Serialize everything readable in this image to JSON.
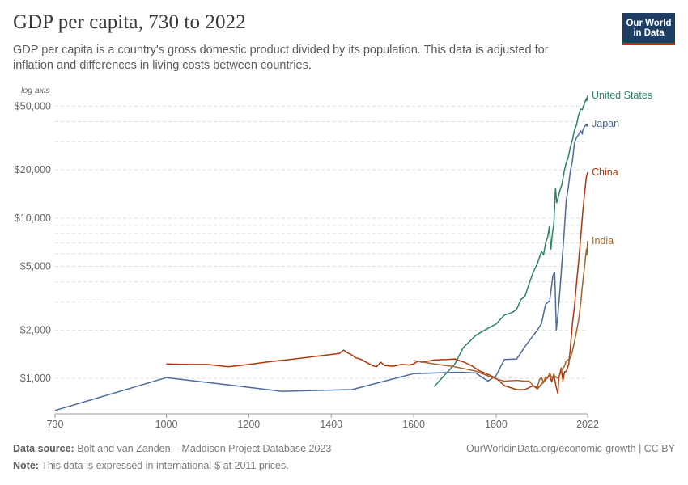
{
  "header": {
    "title": "GDP per capita, 730 to 2022",
    "subtitle": "GDP per capita is a country's gross domestic product divided by its population. This data is adjusted for inflation and differences in living costs between countries."
  },
  "logo": {
    "line1": "Our World",
    "line2": "in Data"
  },
  "footer": {
    "source_label": "Data source:",
    "source_text": "Bolt and van Zanden – Maddison Project Database 2023",
    "note_label": "Note:",
    "note_text": "This data is expressed in international-$ at 2011 prices.",
    "url": "OurWorldinData.org/economic-growth | CC BY"
  },
  "chart_data": {
    "type": "line",
    "axis_note": "log axis",
    "yscale": "log",
    "ylim": [
      600,
      57000
    ],
    "xlim": [
      730,
      2022
    ],
    "x_ticks": [
      730,
      1000,
      1200,
      1400,
      1600,
      1800,
      2022
    ],
    "y_ticks": [
      {
        "value": 1000,
        "label": "$1,000"
      },
      {
        "value": 2000,
        "label": "$2,000"
      },
      {
        "value": 5000,
        "label": "$5,000"
      },
      {
        "value": 10000,
        "label": "$10,000"
      },
      {
        "value": 20000,
        "label": "$20,000"
      },
      {
        "value": 50000,
        "label": "$50,000"
      }
    ],
    "y_gridlines": [
      1000,
      2000,
      3000,
      4000,
      5000,
      6000,
      7000,
      8000,
      9000,
      10000,
      20000,
      30000,
      40000,
      50000
    ],
    "grid": true,
    "legend": "inline-right",
    "series": [
      {
        "name": "United States",
        "color": "#2c8465",
        "points": [
          [
            1650,
            890
          ],
          [
            1700,
            1230
          ],
          [
            1720,
            1550
          ],
          [
            1750,
            1850
          ],
          [
            1780,
            2050
          ],
          [
            1800,
            2180
          ],
          [
            1820,
            2480
          ],
          [
            1840,
            2580
          ],
          [
            1850,
            2700
          ],
          [
            1860,
            3100
          ],
          [
            1870,
            3250
          ],
          [
            1880,
            3900
          ],
          [
            1890,
            4600
          ],
          [
            1900,
            5200
          ],
          [
            1910,
            6200
          ],
          [
            1915,
            5900
          ],
          [
            1920,
            7000
          ],
          [
            1925,
            7600
          ],
          [
            1929,
            8800
          ],
          [
            1933,
            6400
          ],
          [
            1937,
            8200
          ],
          [
            1940,
            9200
          ],
          [
            1944,
            15400
          ],
          [
            1947,
            12500
          ],
          [
            1950,
            13200
          ],
          [
            1955,
            15000
          ],
          [
            1960,
            16300
          ],
          [
            1965,
            19600
          ],
          [
            1970,
            22100
          ],
          [
            1975,
            24000
          ],
          [
            1980,
            27700
          ],
          [
            1985,
            30800
          ],
          [
            1990,
            35400
          ],
          [
            1995,
            38000
          ],
          [
            2000,
            44000
          ],
          [
            2005,
            48000
          ],
          [
            2009,
            47500
          ],
          [
            2010,
            48400
          ],
          [
            2015,
            52500
          ],
          [
            2019,
            56000
          ],
          [
            2020,
            54000
          ],
          [
            2022,
            58500
          ]
        ]
      },
      {
        "name": "Japan",
        "color": "#4c6a9c",
        "points": [
          [
            730,
            630
          ],
          [
            1000,
            1010
          ],
          [
            1150,
            910
          ],
          [
            1280,
            830
          ],
          [
            1450,
            850
          ],
          [
            1600,
            1070
          ],
          [
            1700,
            1090
          ],
          [
            1720,
            1090
          ],
          [
            1750,
            1080
          ],
          [
            1780,
            960
          ],
          [
            1800,
            1040
          ],
          [
            1820,
            1310
          ],
          [
            1850,
            1320
          ],
          [
            1870,
            1580
          ],
          [
            1890,
            1850
          ],
          [
            1900,
            2000
          ],
          [
            1910,
            2200
          ],
          [
            1920,
            2900
          ],
          [
            1930,
            3050
          ],
          [
            1938,
            4400
          ],
          [
            1942,
            4600
          ],
          [
            1945,
            2500
          ],
          [
            1946,
            2000
          ],
          [
            1950,
            2500
          ],
          [
            1955,
            3600
          ],
          [
            1960,
            5400
          ],
          [
            1965,
            8100
          ],
          [
            1970,
            12800
          ],
          [
            1975,
            15500
          ],
          [
            1980,
            19600
          ],
          [
            1985,
            22700
          ],
          [
            1990,
            29300
          ],
          [
            1995,
            31800
          ],
          [
            2000,
            33100
          ],
          [
            2005,
            35100
          ],
          [
            2009,
            33500
          ],
          [
            2010,
            35200
          ],
          [
            2015,
            37400
          ],
          [
            2019,
            38600
          ],
          [
            2020,
            37500
          ],
          [
            2022,
            38800
          ]
        ]
      },
      {
        "name": "China",
        "color": "#b13507",
        "points": [
          [
            1000,
            1230
          ],
          [
            1050,
            1220
          ],
          [
            1100,
            1220
          ],
          [
            1150,
            1180
          ],
          [
            1200,
            1220
          ],
          [
            1250,
            1270
          ],
          [
            1300,
            1310
          ],
          [
            1350,
            1360
          ],
          [
            1400,
            1410
          ],
          [
            1420,
            1430
          ],
          [
            1430,
            1500
          ],
          [
            1440,
            1440
          ],
          [
            1450,
            1400
          ],
          [
            1460,
            1340
          ],
          [
            1470,
            1320
          ],
          [
            1480,
            1280
          ],
          [
            1500,
            1200
          ],
          [
            1510,
            1180
          ],
          [
            1520,
            1260
          ],
          [
            1530,
            1200
          ],
          [
            1550,
            1190
          ],
          [
            1570,
            1220
          ],
          [
            1590,
            1210
          ],
          [
            1600,
            1230
          ],
          [
            1610,
            1280
          ],
          [
            1620,
            1260
          ],
          [
            1650,
            1300
          ],
          [
            1680,
            1310
          ],
          [
            1700,
            1320
          ],
          [
            1710,
            1290
          ],
          [
            1720,
            1270
          ],
          [
            1740,
            1200
          ],
          [
            1760,
            1110
          ],
          [
            1780,
            1060
          ],
          [
            1800,
            1000
          ],
          [
            1820,
            900
          ],
          [
            1850,
            850
          ],
          [
            1870,
            850
          ],
          [
            1890,
            900
          ],
          [
            1900,
            860
          ],
          [
            1910,
            920
          ],
          [
            1920,
            980
          ],
          [
            1929,
            1050
          ],
          [
            1935,
            950
          ],
          [
            1940,
            1060
          ],
          [
            1945,
            900
          ],
          [
            1950,
            800
          ],
          [
            1952,
            1000
          ],
          [
            1958,
            1160
          ],
          [
            1962,
            960
          ],
          [
            1966,
            1100
          ],
          [
            1970,
            1100
          ],
          [
            1976,
            1220
          ],
          [
            1980,
            1530
          ],
          [
            1985,
            2200
          ],
          [
            1990,
            2800
          ],
          [
            1995,
            3900
          ],
          [
            2000,
            5300
          ],
          [
            2005,
            7400
          ],
          [
            2010,
            10800
          ],
          [
            2015,
            14600
          ],
          [
            2019,
            18200
          ],
          [
            2022,
            19300
          ]
        ]
      },
      {
        "name": "India",
        "color": "#a2652c",
        "points": [
          [
            1600,
            1290
          ],
          [
            1650,
            1230
          ],
          [
            1700,
            1180
          ],
          [
            1750,
            1110
          ],
          [
            1800,
            990
          ],
          [
            1820,
            960
          ],
          [
            1850,
            970
          ],
          [
            1870,
            960
          ],
          [
            1880,
            960
          ],
          [
            1890,
            900
          ],
          [
            1900,
            880
          ],
          [
            1905,
            980
          ],
          [
            1910,
            1010
          ],
          [
            1915,
            940
          ],
          [
            1920,
            1020
          ],
          [
            1925,
            1000
          ],
          [
            1930,
            1080
          ],
          [
            1935,
            1010
          ],
          [
            1940,
            1040
          ],
          [
            1945,
            1020
          ],
          [
            1950,
            1000
          ],
          [
            1955,
            1060
          ],
          [
            1960,
            1140
          ],
          [
            1965,
            1180
          ],
          [
            1970,
            1280
          ],
          [
            1975,
            1310
          ],
          [
            1980,
            1330
          ],
          [
            1985,
            1480
          ],
          [
            1990,
            1690
          ],
          [
            1995,
            1950
          ],
          [
            2000,
            2300
          ],
          [
            2005,
            2900
          ],
          [
            2010,
            3950
          ],
          [
            2015,
            5100
          ],
          [
            2019,
            6400
          ],
          [
            2020,
            5900
          ],
          [
            2022,
            7200
          ]
        ]
      }
    ]
  }
}
